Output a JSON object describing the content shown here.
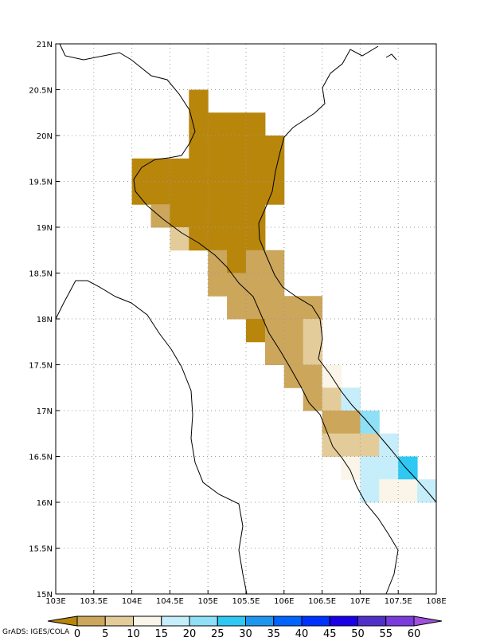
{
  "chart_data": {
    "type": "gridmap",
    "xlim": [
      103,
      108
    ],
    "ylim": [
      15,
      21
    ],
    "xticks": [
      {
        "value": 103,
        "label": "103E"
      },
      {
        "value": 103.5,
        "label": "103.5E"
      },
      {
        "value": 104,
        "label": "104E"
      },
      {
        "value": 104.5,
        "label": "104.5E"
      },
      {
        "value": 105,
        "label": "105E"
      },
      {
        "value": 105.5,
        "label": "105.5E"
      },
      {
        "value": 106,
        "label": "106E"
      },
      {
        "value": 106.5,
        "label": "106.5E"
      },
      {
        "value": 107,
        "label": "107E"
      },
      {
        "value": 107.5,
        "label": "107.5E"
      },
      {
        "value": 108,
        "label": "108E"
      }
    ],
    "yticks": [
      {
        "value": 15,
        "label": "15N"
      },
      {
        "value": 15.5,
        "label": "15.5N"
      },
      {
        "value": 16,
        "label": "16N"
      },
      {
        "value": 16.5,
        "label": "16.5N"
      },
      {
        "value": 17,
        "label": "17N"
      },
      {
        "value": 17.5,
        "label": "17.5N"
      },
      {
        "value": 18,
        "label": "18N"
      },
      {
        "value": 18.5,
        "label": "18.5N"
      },
      {
        "value": 19,
        "label": "19N"
      },
      {
        "value": 19.5,
        "label": "19.5N"
      },
      {
        "value": 20,
        "label": "20N"
      },
      {
        "value": 20.5,
        "label": "20.5N"
      },
      {
        "value": 21,
        "label": "21N"
      }
    ],
    "grid": true,
    "levels": [
      0,
      5,
      10,
      15,
      20,
      25,
      30,
      35,
      40,
      45,
      50,
      55,
      60
    ],
    "colors": [
      "#b8860b",
      "#cca65a",
      "#e3cc9a",
      "#faf5e8",
      "#c6eefa",
      "#8ee0f6",
      "#2ec8f2",
      "#1e96f0",
      "#0064ff",
      "#0032ff",
      "#1a00e6",
      "#5030c8",
      "#7a3cdc",
      "#a050dc"
    ],
    "cells": [
      [
        104.75,
        20.25,
        -2
      ],
      [
        104.75,
        20,
        -2
      ],
      [
        105,
        20,
        -2
      ],
      [
        105.25,
        20,
        -2
      ],
      [
        105.5,
        20,
        -2
      ],
      [
        104.75,
        19.75,
        -2
      ],
      [
        105,
        19.75,
        -2
      ],
      [
        105.25,
        19.75,
        -2
      ],
      [
        105.5,
        19.75,
        -2
      ],
      [
        105.75,
        19.75,
        -2
      ],
      [
        104,
        19.5,
        -2
      ],
      [
        104.25,
        19.5,
        -2
      ],
      [
        104.5,
        19.5,
        -2
      ],
      [
        104.75,
        19.5,
        -2
      ],
      [
        105,
        19.5,
        -2
      ],
      [
        105.25,
        19.5,
        -2
      ],
      [
        105.5,
        19.5,
        -2
      ],
      [
        105.75,
        19.5,
        -2
      ],
      [
        104,
        19.25,
        -2
      ],
      [
        104.25,
        19.25,
        -2
      ],
      [
        104.5,
        19.25,
        -2
      ],
      [
        104.75,
        19.25,
        -2
      ],
      [
        105,
        19.25,
        -2
      ],
      [
        105.25,
        19.25,
        -2
      ],
      [
        105.5,
        19.25,
        -2
      ],
      [
        105.75,
        19.25,
        -2
      ],
      [
        104.25,
        19,
        2.5
      ],
      [
        104.5,
        19,
        -2
      ],
      [
        104.75,
        19,
        -2
      ],
      [
        105,
        19,
        -2
      ],
      [
        105.25,
        19,
        -2
      ],
      [
        105.5,
        19,
        -2
      ],
      [
        104.5,
        18.75,
        7.5
      ],
      [
        104.75,
        18.75,
        -2
      ],
      [
        105,
        18.75,
        -2
      ],
      [
        105.25,
        18.75,
        -2
      ],
      [
        105.5,
        18.75,
        -2
      ],
      [
        105,
        18.5,
        2.5
      ],
      [
        105.25,
        18.5,
        -2
      ],
      [
        105.5,
        18.5,
        2.5
      ],
      [
        105.75,
        18.5,
        2.5
      ],
      [
        105,
        18.25,
        2.5
      ],
      [
        105.25,
        18.25,
        2.5
      ],
      [
        105.5,
        18.25,
        2.5
      ],
      [
        105.75,
        18.25,
        2.5
      ],
      [
        105.25,
        18,
        2.5
      ],
      [
        105.5,
        18,
        2.5
      ],
      [
        105.75,
        18,
        2.5
      ],
      [
        106,
        18,
        2.5
      ],
      [
        106.25,
        18,
        2.5
      ],
      [
        105.5,
        17.75,
        -2
      ],
      [
        105.75,
        17.75,
        2.5
      ],
      [
        106,
        17.75,
        2.5
      ],
      [
        106.25,
        17.75,
        7.5
      ],
      [
        105.75,
        17.5,
        2.5
      ],
      [
        106,
        17.5,
        2.5
      ],
      [
        106.25,
        17.5,
        7.5
      ],
      [
        106,
        17.25,
        2.5
      ],
      [
        106.25,
        17.25,
        2.5
      ],
      [
        106.5,
        17.25,
        12.5
      ],
      [
        106.25,
        17,
        2.5
      ],
      [
        106.5,
        17,
        7.5
      ],
      [
        106.75,
        17,
        17.5
      ],
      [
        106.5,
        16.75,
        2.5
      ],
      [
        106.75,
        16.75,
        2.5
      ],
      [
        107,
        16.75,
        22.5
      ],
      [
        106.5,
        16.5,
        7.5
      ],
      [
        106.75,
        16.5,
        7.5
      ],
      [
        107,
        16.5,
        7.5
      ],
      [
        107.25,
        16.5,
        17.5
      ],
      [
        106.75,
        16.25,
        12.5
      ],
      [
        107,
        16.25,
        17.5
      ],
      [
        107.25,
        16.25,
        17.5
      ],
      [
        107.5,
        16.25,
        27.5
      ],
      [
        107,
        16,
        17.5
      ],
      [
        107.25,
        16,
        12.5
      ],
      [
        107.5,
        16,
        12.5
      ],
      [
        107.75,
        16,
        17.5
      ]
    ],
    "credit": "GrADS: IGES/COLA"
  }
}
